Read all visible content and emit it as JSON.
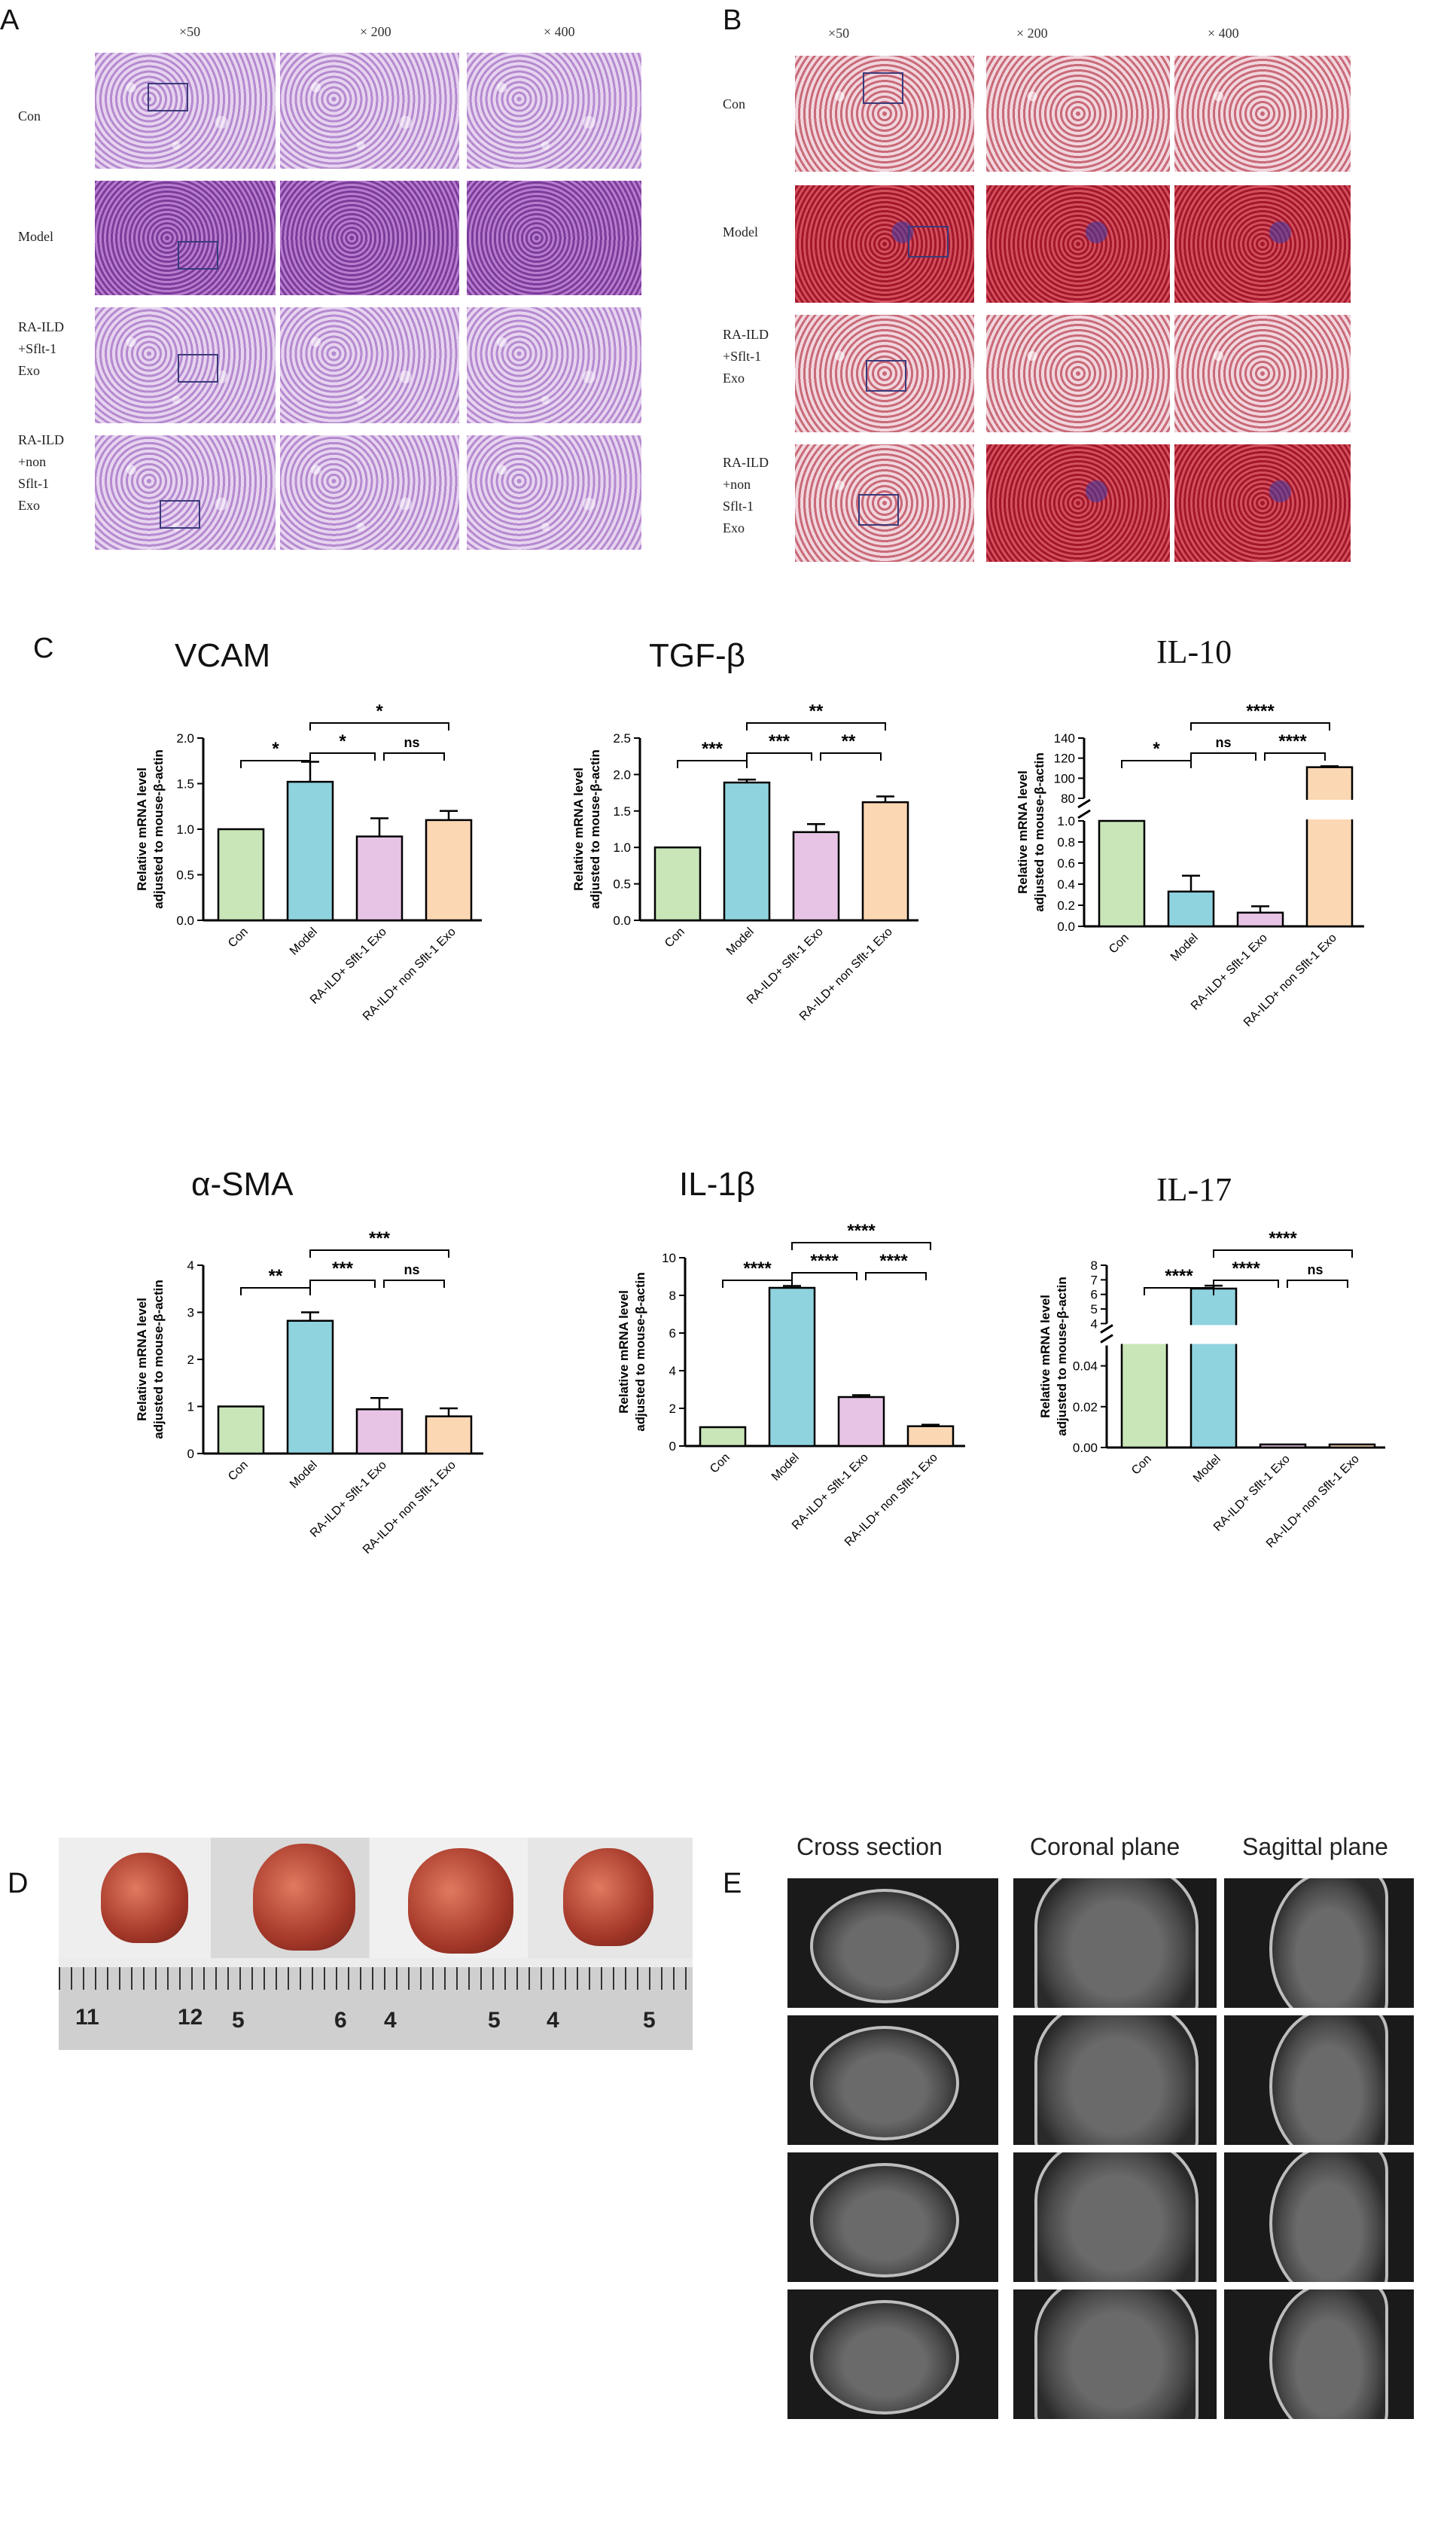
{
  "panels": {
    "A": "A",
    "B": "B",
    "C": "C",
    "D": "D",
    "E": "E"
  },
  "histology": {
    "magnifications": [
      "×50",
      "× 200",
      "× 400"
    ],
    "rows_A": [
      "Con",
      "Model",
      "RA-ILD\n+Sflt-1\nExo",
      "RA-ILD\n+non\nSflt-1\nExo"
    ],
    "rows_B": [
      "Con",
      "Model",
      "RA-ILD\n+Sflt-1\nExo",
      "RA-ILD\n+non\nSflt-1\nExo"
    ]
  },
  "chart_common": {
    "ylabel_line1": "Relative mRNA level",
    "ylabel_line2": "adjusted to mouse-β-actin",
    "categories": [
      "Con",
      "Model",
      "RA-ILD+ Sflt-1 Exo",
      "RA-ILD+ non Sflt-1 Exo"
    ],
    "bar_colors": [
      "#c8e6b8",
      "#8fd3df",
      "#e7c4e6",
      "#fbd7b3"
    ]
  },
  "chart_data": [
    {
      "type": "bar",
      "title": "VCAM",
      "values": [
        1.0,
        1.52,
        0.92,
        1.1
      ],
      "errors": [
        0,
        0.22,
        0.2,
        0.1
      ],
      "ylim": [
        0,
        2.0
      ],
      "yticks": [
        "0.0",
        "0.5",
        "1.0",
        "1.5",
        "2.0"
      ],
      "significance": [
        {
          "from": 0,
          "to": 1,
          "label": "*"
        },
        {
          "from": 1,
          "to": 2,
          "label": "*"
        },
        {
          "from": 2,
          "to": 3,
          "label": "ns"
        },
        {
          "from": 1,
          "to": 3,
          "label": "*"
        }
      ]
    },
    {
      "type": "bar",
      "title": "TGF-β",
      "values": [
        1.0,
        1.89,
        1.21,
        1.62
      ],
      "errors": [
        0,
        0.04,
        0.11,
        0.08
      ],
      "ylim": [
        0,
        2.5
      ],
      "yticks": [
        "0.0",
        "0.5",
        "1.0",
        "1.5",
        "2.0",
        "2.5"
      ],
      "significance": [
        {
          "from": 0,
          "to": 1,
          "label": "***"
        },
        {
          "from": 1,
          "to": 2,
          "label": "***"
        },
        {
          "from": 2,
          "to": 3,
          "label": "**"
        },
        {
          "from": 1,
          "to": 3,
          "label": "**"
        }
      ]
    },
    {
      "type": "bar",
      "title": "IL-10",
      "values": [
        1.0,
        0.33,
        0.13,
        111
      ],
      "errors": [
        0,
        0.15,
        0.06,
        1.0
      ],
      "broken_axis": {
        "lower": [
          0,
          1.0
        ],
        "upper": [
          80,
          140
        ]
      },
      "yticks_lower": [
        "0.0",
        "0.2",
        "0.4",
        "0.6",
        "0.8",
        "1.0"
      ],
      "yticks_upper": [
        "80",
        "100",
        "120",
        "140"
      ],
      "significance": [
        {
          "from": 0,
          "to": 1,
          "label": "*"
        },
        {
          "from": 1,
          "to": 2,
          "label": "ns"
        },
        {
          "from": 2,
          "to": 3,
          "label": "****"
        },
        {
          "from": 1,
          "to": 3,
          "label": "****"
        }
      ]
    },
    {
      "type": "bar",
      "title": "α-SMA",
      "values": [
        1.0,
        2.82,
        0.94,
        0.79
      ],
      "errors": [
        0,
        0.18,
        0.24,
        0.17
      ],
      "ylim": [
        0,
        4
      ],
      "yticks": [
        "0",
        "1",
        "2",
        "3",
        "4"
      ],
      "significance": [
        {
          "from": 0,
          "to": 1,
          "label": "**"
        },
        {
          "from": 1,
          "to": 2,
          "label": "***"
        },
        {
          "from": 2,
          "to": 3,
          "label": "ns"
        },
        {
          "from": 1,
          "to": 3,
          "label": "***"
        }
      ]
    },
    {
      "type": "bar",
      "title": "IL-1β",
      "values": [
        1.0,
        8.4,
        2.6,
        1.05
      ],
      "errors": [
        0,
        0.1,
        0.1,
        0.08
      ],
      "ylim": [
        0,
        10
      ],
      "yticks": [
        "0",
        "2",
        "4",
        "6",
        "8",
        "10"
      ],
      "significance": [
        {
          "from": 0,
          "to": 1,
          "label": "****"
        },
        {
          "from": 1,
          "to": 2,
          "label": "****"
        },
        {
          "from": 2,
          "to": 3,
          "label": "****"
        },
        {
          "from": 1,
          "to": 3,
          "label": "****"
        }
      ]
    },
    {
      "type": "bar",
      "title": "IL-17",
      "values": [
        1.0,
        6.4,
        0.0015,
        0.0015
      ],
      "errors": [
        0,
        0.2,
        0,
        0
      ],
      "broken_axis": {
        "lower": [
          0,
          0.05
        ],
        "upper": [
          4,
          8
        ]
      },
      "yticks_lower": [
        "0.00",
        "0.02",
        "0.04"
      ],
      "yticks_upper": [
        "4",
        "5",
        "6",
        "7",
        "8"
      ],
      "significance": [
        {
          "from": 0,
          "to": 1,
          "label": "****"
        },
        {
          "from": 1,
          "to": 2,
          "label": "****"
        },
        {
          "from": 2,
          "to": 3,
          "label": "ns"
        },
        {
          "from": 1,
          "to": 3,
          "label": "****"
        }
      ]
    }
  ],
  "ruler_numbers": [
    "11",
    "12",
    "5",
    "6",
    "4",
    "5",
    "4",
    "5"
  ],
  "ct": {
    "headers": [
      "Cross section",
      "Coronal plane",
      "Sagittal plane"
    ]
  }
}
